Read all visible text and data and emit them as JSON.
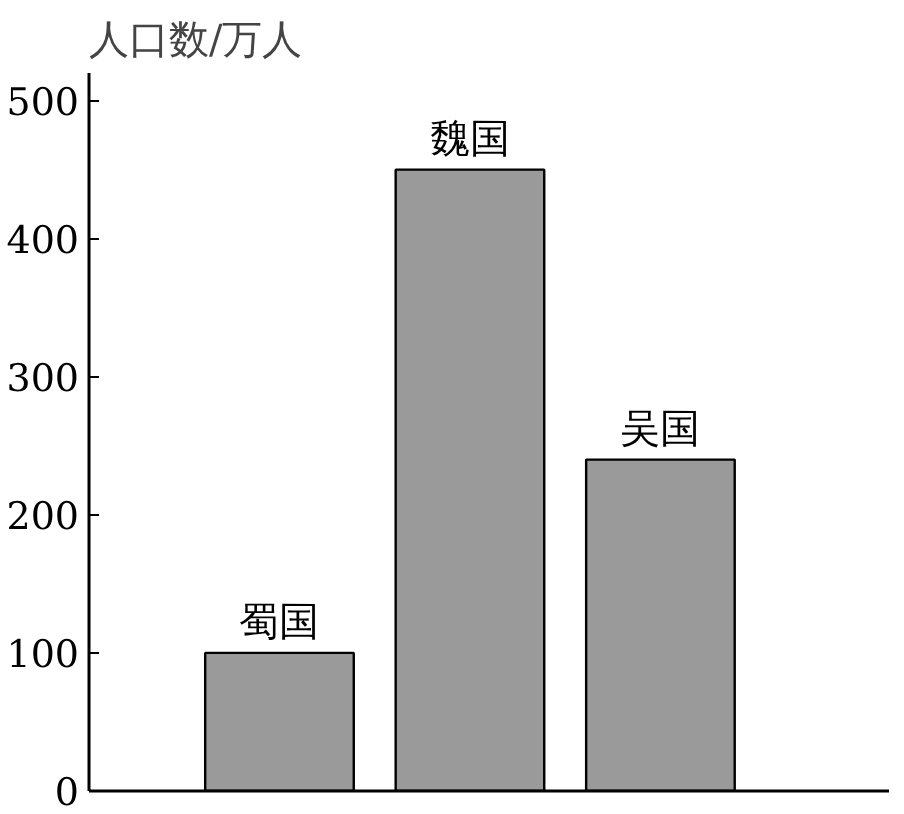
{
  "chart_data": {
    "type": "bar",
    "ylabel": "人口数/万人",
    "categories": [
      "蜀国",
      "魏国",
      "吴国"
    ],
    "values": [
      100,
      450,
      240
    ],
    "color": "#9a9a9a",
    "ylim": [
      0,
      520
    ],
    "yticks": [
      0,
      100,
      200,
      300,
      400,
      500
    ],
    "grid": false
  }
}
